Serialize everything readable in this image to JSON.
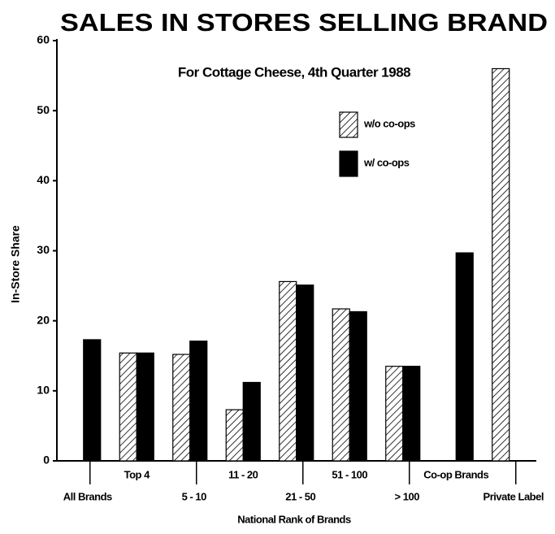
{
  "chart_data": {
    "type": "bar",
    "title": "SALES IN STORES SELLING BRAND",
    "subtitle": "For Cottage Cheese, 4th Quarter 1988",
    "x_label": "National Rank of Brands",
    "y_label": "In-Store Share",
    "categories": [
      "All Brands",
      "Top 4",
      "5 - 10",
      "11 - 20",
      "21 - 50",
      "51 - 100",
      "> 100",
      "Co-op Brands",
      "Private Label"
    ],
    "series": [
      {
        "name": "w/o co-ops",
        "color": "hatched",
        "values": [
          null,
          15.4,
          15.2,
          7.3,
          25.6,
          21.7,
          13.5,
          null,
          56
        ]
      },
      {
        "name": "w/ co-ops",
        "color": "#000000",
        "values": [
          17.3,
          15.4,
          17.1,
          11.2,
          25.1,
          21.3,
          13.5,
          29.7,
          null
        ]
      }
    ],
    "ylim": [
      0,
      60
    ],
    "yticks": [
      0,
      10,
      20,
      30,
      40,
      50,
      60
    ],
    "grid": false,
    "legend": "upper right"
  }
}
